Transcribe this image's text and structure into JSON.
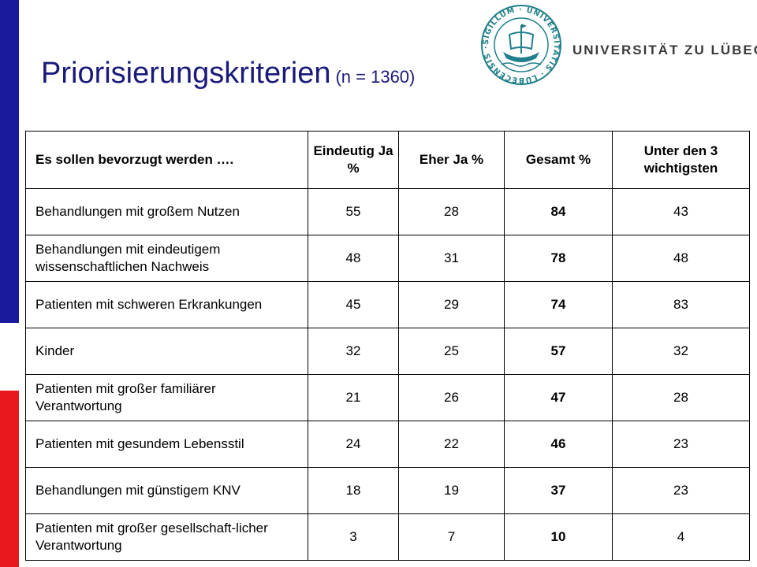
{
  "slide": {
    "title": "Priorisierungskriterien",
    "subtitle": "(n = 1360)"
  },
  "logo": {
    "university_name": "UNIVERSITÄT ZU LÜBECK",
    "seal_text": "SIGILLUM · UNIVERSITATIS · LUBECENSIS ·",
    "seal_icon": "ship-seal-icon",
    "colors": {
      "seal": "#1f7f8a",
      "text": "#3a3a3a"
    }
  },
  "accent_colors": {
    "blue": "#1a1a9c",
    "red": "#e8191c",
    "title": "#1a1a7a"
  },
  "table": {
    "headers": [
      "Es sollen bevorzugt werden ….",
      "Eindeutig Ja %",
      "Eher Ja %",
      "Gesamt %",
      "Unter den 3 wichtigsten"
    ],
    "rows": [
      {
        "label": "Behandlungen mit großem Nutzen",
        "eindeutig": "55",
        "eher": "28",
        "gesamt": "84",
        "top3": "43"
      },
      {
        "label": "Behandlungen mit eindeutigem wissenschaftlichen Nachweis",
        "eindeutig": "48",
        "eher": "31",
        "gesamt": "78",
        "top3": "48"
      },
      {
        "label": "Patienten mit schweren Erkrankungen",
        "eindeutig": "45",
        "eher": "29",
        "gesamt": "74",
        "top3": "83"
      },
      {
        "label": "Kinder",
        "eindeutig": "32",
        "eher": "25",
        "gesamt": "57",
        "top3": "32"
      },
      {
        "label": "Patienten mit großer familiärer Verantwortung",
        "eindeutig": "21",
        "eher": "26",
        "gesamt": "47",
        "top3": "28"
      },
      {
        "label": "Patienten mit gesundem Lebensstil",
        "eindeutig": "24",
        "eher": "22",
        "gesamt": "46",
        "top3": "23"
      },
      {
        "label": "Behandlungen mit günstigem KNV",
        "eindeutig": "18",
        "eher": "19",
        "gesamt": "37",
        "top3": "23"
      },
      {
        "label": "Patienten mit großer gesellschaft-licher Verantwortung",
        "eindeutig": "3",
        "eher": "7",
        "gesamt": "10",
        "top3": "4"
      }
    ]
  }
}
